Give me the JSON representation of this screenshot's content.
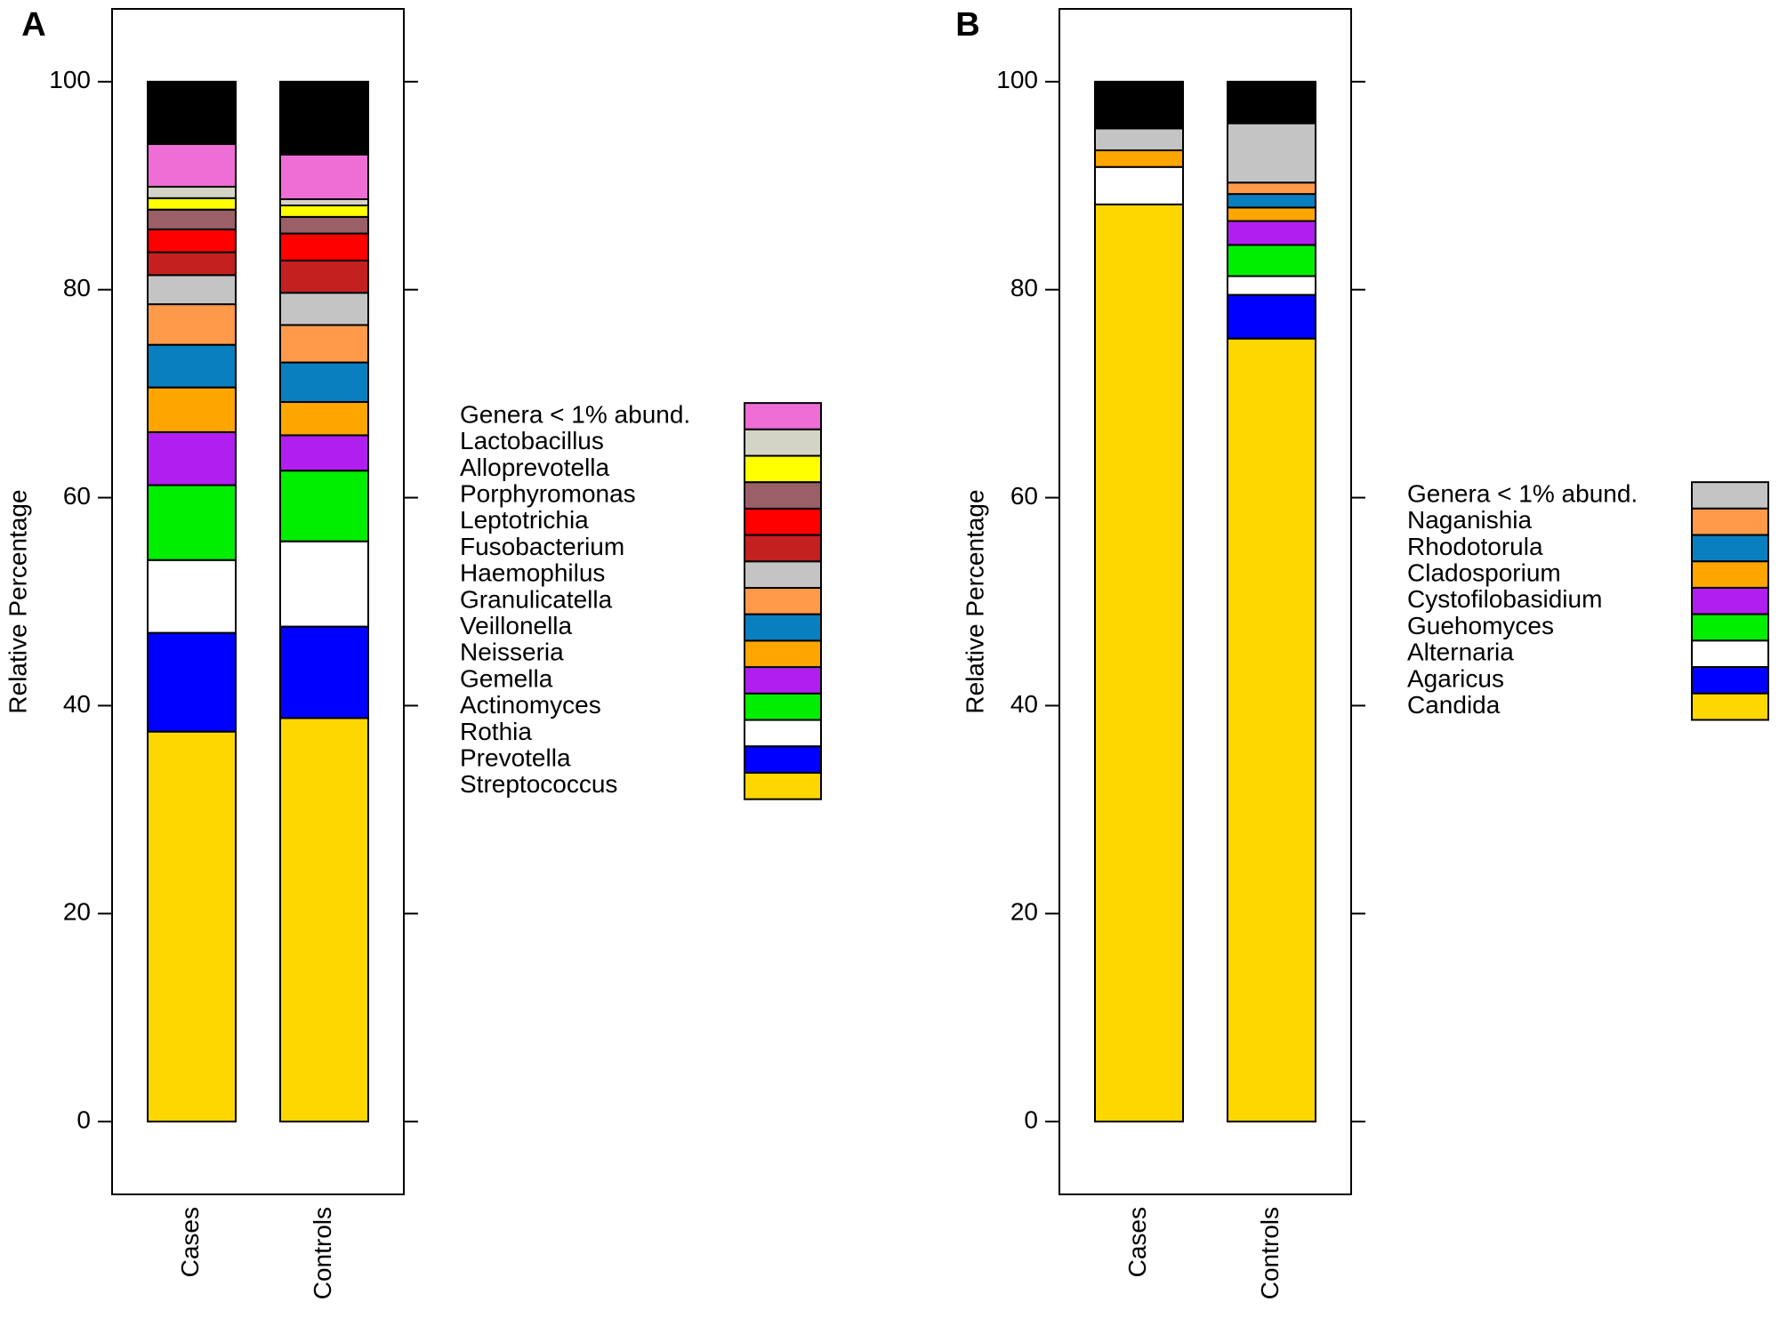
{
  "chart_data": [
    {
      "type": "bar",
      "stacked": true,
      "panel_label": "A",
      "ylabel": "Relative Percentage",
      "categories": [
        "Cases",
        "Controls"
      ],
      "ylim": [
        -7,
        107
      ],
      "yticks": [
        0,
        20,
        40,
        60,
        80,
        100
      ],
      "series": [
        {
          "name": "Streptococcus",
          "color": "#ffd700",
          "values": [
            37.5,
            38.8
          ]
        },
        {
          "name": "Prevotella",
          "color": "#0000ff",
          "values": [
            9.5,
            8.8
          ]
        },
        {
          "name": "Rothia",
          "color": "#ffffff",
          "values": [
            7,
            8.2
          ]
        },
        {
          "name": "Actinomyces",
          "color": "#00ee00",
          "values": [
            7.2,
            6.8
          ]
        },
        {
          "name": "Gemella",
          "color": "#b01ff0",
          "values": [
            5.1,
            3.4
          ]
        },
        {
          "name": "Neisseria",
          "color": "#ffa500",
          "values": [
            4.3,
            3.2
          ]
        },
        {
          "name": "Veillonella",
          "color": "#0a7fbf",
          "values": [
            4.1,
            3.8
          ]
        },
        {
          "name": "Granulicatella",
          "color": "#ff9a4a",
          "values": [
            3.9,
            3.6
          ]
        },
        {
          "name": "Haemophilus",
          "color": "#c4c4c4",
          "values": [
            2.8,
            3.1
          ]
        },
        {
          "name": "Fusobacterium",
          "color": "#c42020",
          "values": [
            2.2,
            3.1
          ]
        },
        {
          "name": "Leptotrichia",
          "color": "#ff0000",
          "values": [
            2.2,
            2.6
          ]
        },
        {
          "name": "Porphyromonas",
          "color": "#9b5f67",
          "values": [
            1.9,
            1.6
          ]
        },
        {
          "name": "Alloprevotella",
          "color": "#ffff00",
          "values": [
            1.1,
            1.1
          ]
        },
        {
          "name": "Lactobacillus",
          "color": "#d4d4c6",
          "values": [
            1.1,
            0.6
          ]
        },
        {
          "name": "Genera < 1% abund.",
          "color": "#ee6ed6",
          "values": [
            4.1,
            4.3
          ]
        },
        {
          "color": "#000000",
          "values": [
            6,
            7
          ]
        }
      ]
    },
    {
      "type": "bar",
      "stacked": true,
      "panel_label": "B",
      "ylabel": "Relative Percentage",
      "categories": [
        "Cases",
        "Controls"
      ],
      "ylim": [
        -7,
        107
      ],
      "yticks": [
        0,
        20,
        40,
        60,
        80,
        100
      ],
      "series": [
        {
          "name": "Candida",
          "color": "#ffd700",
          "values": [
            88.2,
            75.3
          ]
        },
        {
          "name": "Agaricus",
          "color": "#0000ff",
          "values": [
            0,
            4.2
          ]
        },
        {
          "name": "Alternaria",
          "color": "#ffffff",
          "values": [
            3.6,
            1.8
          ]
        },
        {
          "name": "Guehomyces",
          "color": "#00ee00",
          "values": [
            0,
            3
          ]
        },
        {
          "name": "Cystofilobasidium",
          "color": "#b01ff0",
          "values": [
            0,
            2.3
          ]
        },
        {
          "name": "Cladosporium",
          "color": "#ffa500",
          "values": [
            1.6,
            1.3
          ]
        },
        {
          "name": "Rhodotorula",
          "color": "#0a7fbf",
          "values": [
            0,
            1.3
          ]
        },
        {
          "name": "Naganishia",
          "color": "#ff9a4a",
          "values": [
            0,
            1.1
          ]
        },
        {
          "name": "Genera < 1% abund.",
          "color": "#c4c4c4",
          "values": [
            2.1,
            5.7
          ]
        },
        {
          "color": "#000000",
          "values": [
            4.5,
            4
          ]
        }
      ]
    }
  ]
}
